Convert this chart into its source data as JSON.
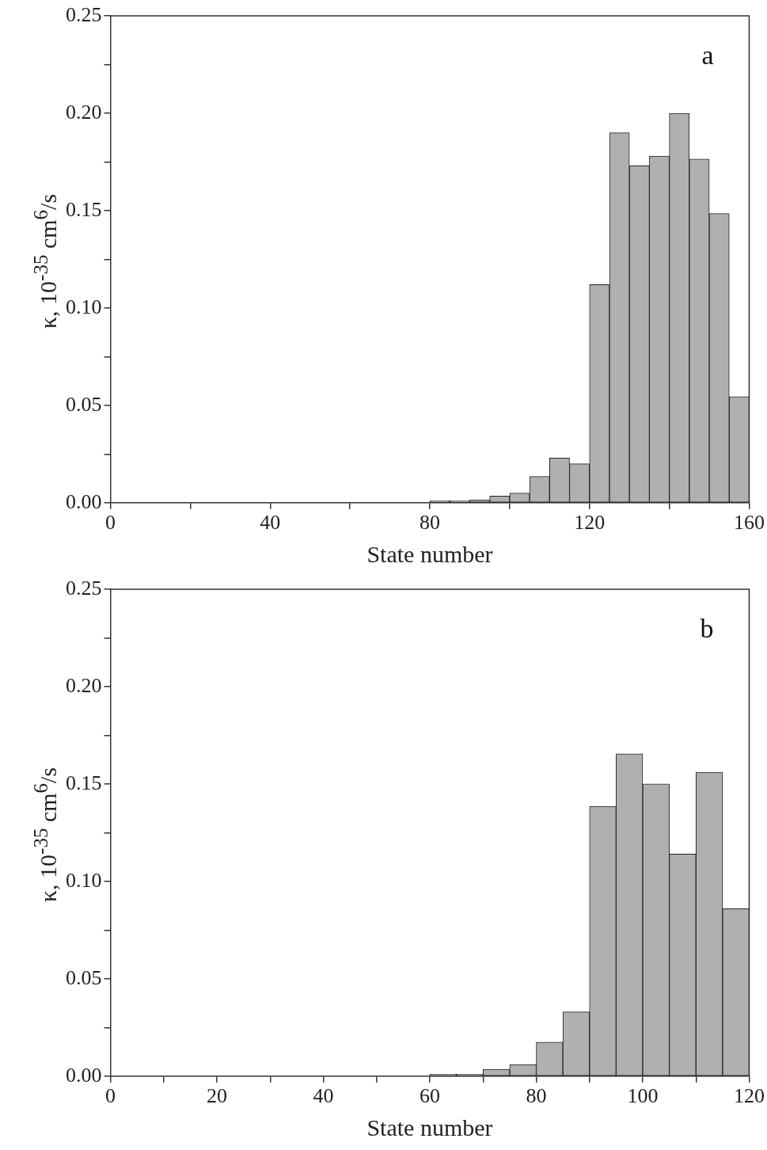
{
  "chart_data": [
    {
      "type": "histogram",
      "xlabel": "State number",
      "ylabel": "κ, 10$^{-35}$ cm$^{6}$/s",
      "annotations": [
        "a"
      ],
      "bins": [
        80,
        85,
        90,
        95,
        100,
        105,
        110,
        115,
        120,
        125,
        130,
        135,
        140,
        145,
        150,
        155,
        160
      ],
      "values": [
        0.001,
        0.001,
        0.0015,
        0.0034,
        0.005,
        0.0135,
        0.023,
        0.02,
        0.112,
        0.19,
        0.173,
        0.178,
        0.2,
        0.1765,
        0.1485,
        0.0545
      ],
      "color": "#b0b0b0",
      "xlim": [
        0,
        160
      ],
      "xticks": [
        0,
        {
          "value": 20,
          "label": null
        },
        40,
        {
          "value": 60,
          "label": null
        },
        80,
        {
          "value": 100,
          "label": null
        },
        120,
        {
          "value": 140,
          "label": null
        },
        160
      ],
      "ylim": [
        0,
        0.25
      ],
      "yticks": [
        {
          "value": 0,
          "label": "0.00"
        },
        {
          "value": 0.025,
          "label": null
        },
        {
          "value": 0.05,
          "label": "0.05"
        },
        {
          "value": 0.075,
          "label": null
        },
        {
          "value": 0.1,
          "label": "0.10"
        },
        {
          "value": 0.125,
          "label": null
        },
        {
          "value": 0.15,
          "label": "0.15"
        },
        {
          "value": 0.175,
          "label": null
        },
        {
          "value": 0.2,
          "label": "0.20"
        },
        {
          "value": 0.225,
          "label": null
        },
        {
          "value": 0.25,
          "label": "0.25"
        }
      ],
      "grid": false
    },
    {
      "type": "histogram",
      "xlabel": "State number",
      "ylabel": "κ, 10$^{-35}$ cm$^{6}$/s",
      "annotations": [
        "b"
      ],
      "bins": [
        60,
        65,
        70,
        75,
        80,
        85,
        90,
        95,
        100,
        105,
        110,
        115,
        120
      ],
      "values": [
        0.001,
        0.001,
        0.0035,
        0.006,
        0.0175,
        0.033,
        0.1385,
        0.1655,
        0.15,
        0.114,
        0.156,
        0.086
      ],
      "color": "#b0b0b0",
      "xlim": [
        0,
        120
      ],
      "xticks": [
        0,
        {
          "value": 10,
          "label": null
        },
        20,
        {
          "value": 30,
          "label": null
        },
        40,
        {
          "value": 50,
          "label": null
        },
        60,
        {
          "value": 70,
          "label": null
        },
        80,
        {
          "value": 90,
          "label": null
        },
        100,
        {
          "value": 110,
          "label": null
        },
        120
      ],
      "ylim": [
        0,
        0.25
      ],
      "yticks": [
        {
          "value": 0,
          "label": "0.00"
        },
        {
          "value": 0.025,
          "label": null
        },
        {
          "value": 0.05,
          "label": "0.05"
        },
        {
          "value": 0.075,
          "label": null
        },
        {
          "value": 0.1,
          "label": "0.10"
        },
        {
          "value": 0.125,
          "label": null
        },
        {
          "value": 0.15,
          "label": "0.15"
        },
        {
          "value": 0.175,
          "label": null
        },
        {
          "value": 0.2,
          "label": "0.20"
        },
        {
          "value": 0.225,
          "label": null
        },
        {
          "value": 0.25,
          "label": "0.25"
        }
      ],
      "grid": false
    }
  ]
}
